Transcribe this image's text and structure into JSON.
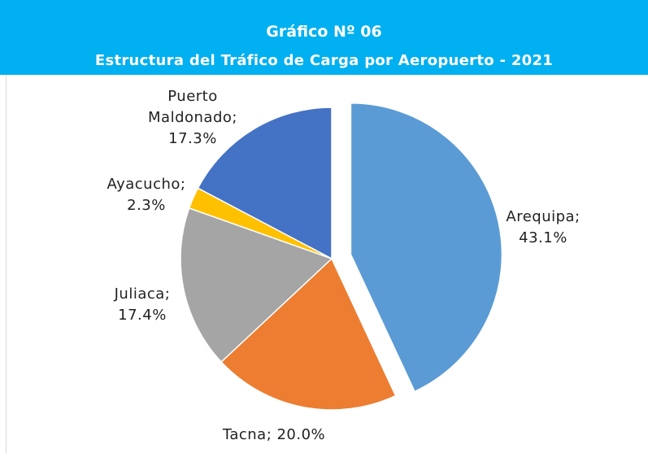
{
  "chart_data": {
    "type": "pie",
    "title": "Gráfico Nº 06",
    "subtitle": "Estructura del Tráfico de Carga por Aeropuerto - 2021",
    "values": [
      43.1,
      20.0,
      17.4,
      2.3,
      17.3
    ],
    "value_labels": [
      "Arequipa; 43.1%",
      "Tacna; 20.0%",
      "Juliaca; 17.4%",
      "Ayacucho; 2.3%",
      "Puerto Maldonado; 17.3%"
    ],
    "colors": [
      "#5b9bd5",
      "#ed7d31",
      "#a5a5a5",
      "#ffc000",
      "#4472c4"
    ],
    "exploded": [
      0
    ]
  }
}
